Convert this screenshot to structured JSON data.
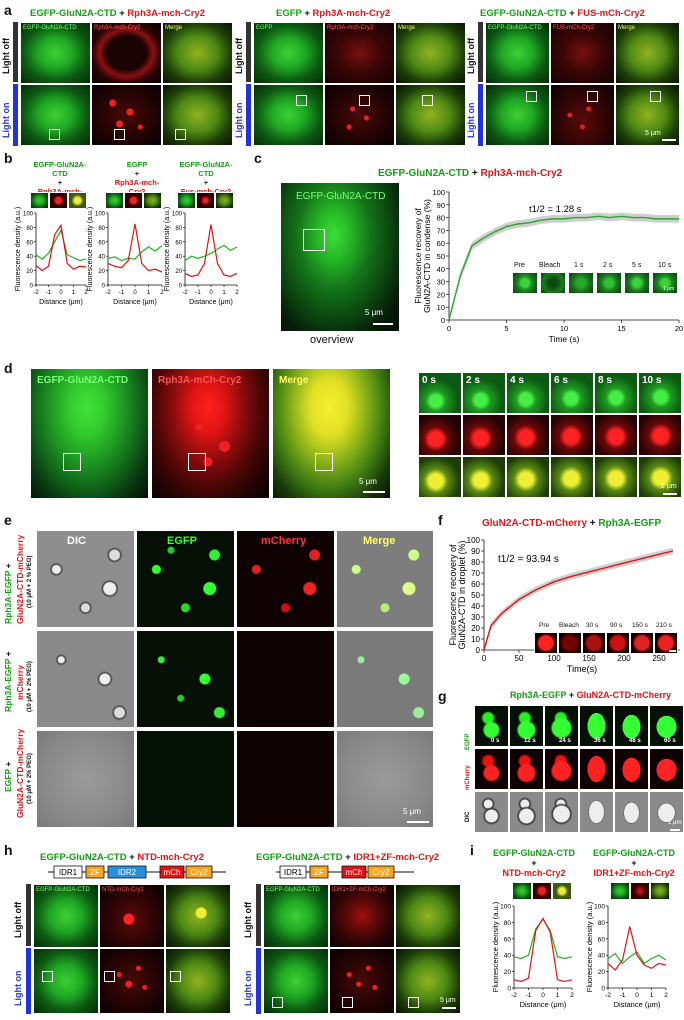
{
  "labels": {
    "a": "a",
    "b": "b",
    "c": "c",
    "d": "d",
    "e": "e",
    "f": "f",
    "g": "g",
    "h": "h",
    "i": "i"
  },
  "plus": "+",
  "a": {
    "g1": {
      "green": "EGFP-GluN2A-CTD",
      "red": "Rph3A-mch-Cry2",
      "caps": [
        "EGFP-GluN2A-CTD",
        "Rph3A-mch-Cry2",
        "Merge"
      ]
    },
    "g2": {
      "green": "EGFP",
      "red": "Rph3A-mch-Cry2",
      "caps": [
        "EGFP",
        "Rph3A-mch-Cry2",
        "Merge"
      ]
    },
    "g3": {
      "green": "EGFP-GluN2A-CTD",
      "red": "FUS-mCh-Cry2",
      "caps": [
        "EGFP-GluN2A-CTD",
        "FUS-mCh-Cry2",
        "Merge"
      ]
    },
    "row_off": "Light off",
    "row_on": "Light on",
    "scale": "5 μm"
  },
  "b": {
    "titles": [
      {
        "line1": "EGFP-GluN2A-CTD",
        "line2": "Rph3A-mch-Cry2"
      },
      {
        "line1": "EGFP",
        "line2": "Rph3A-mch-Cry2"
      },
      {
        "line1": "EGFP-GluN2A-CTD",
        "line2": "Fus-mch-Cry2"
      }
    ],
    "ylabel": "Fluorescence density (a.u.)",
    "xlabel": "Distance (μm)",
    "yticks": [
      "0",
      "20",
      "40",
      "60",
      "80",
      "100"
    ],
    "xticks": [
      "-2",
      "-1",
      "0",
      "1",
      "2"
    ]
  },
  "c": {
    "title_green": "EGFP-GluN2A-CTD",
    "title_red": "Rph3A-mch-Cry2",
    "image_label": "EGFP-GluN2A-CTD",
    "overview": "overview",
    "scale": "5 μm",
    "t_half": "t1/2 = 1.28 s",
    "ylabel1": "Fluorescence recovery of",
    "ylabel2": "GluN2A-CTD in condense (%)",
    "xlabel": "Time (s)",
    "frames": [
      "Pre",
      "Bleach",
      "1 s",
      "2 s",
      "5 s",
      "10 s"
    ],
    "frame_scale": "1 μm"
  },
  "d": {
    "caps": [
      "EGFP-GluN2A-CTD",
      "Rph3A-mCh-Cry2",
      "Merge"
    ],
    "scale": "5 μm",
    "times": [
      "0 s",
      "2 s",
      "4 s",
      "6 s",
      "8 s",
      "10 s"
    ],
    "ts_scale": "2 μm"
  },
  "e": {
    "cols": [
      "DIC",
      "EGFP",
      "mCherry",
      "Merge"
    ],
    "rows": [
      {
        "green": "Rph3A-EGFP",
        "red": "GluN2A-CTD-mCherry",
        "cond": "(10 μM + 2 % PEG)"
      },
      {
        "green": "Rph3A-EGFP",
        "red": "mCherry",
        "cond": "(10 μM + 2% PEG)"
      },
      {
        "green": "EGFP",
        "red": "GluN2A-CTD-mCherry",
        "cond": "(10 μM + 2% PEG)"
      }
    ],
    "scale": "5 μm"
  },
  "f": {
    "title_red": "GluN2A-CTD-mCherry",
    "title_green": "Rph3A-EGFP",
    "t_half": "t1/2 = 93.94 s",
    "ylabel1": "Fluorescence recovery of",
    "ylabel2": "GluN2A-CTD in droplet (%)",
    "xlabel": "Time(s)",
    "frames": [
      "Pre",
      "Bleach",
      "30 s",
      "90 s",
      "150 s",
      "210 s"
    ]
  },
  "g": {
    "title_green": "Rph3A-EGFP",
    "title_red": "GluN2A-CTD-mCherry",
    "rows": [
      "EGFP",
      "mCherry",
      "DIC"
    ],
    "times": [
      "0 s",
      "12 s",
      "24 s",
      "36 s",
      "48 s",
      "60 s"
    ],
    "scale": "2 μm"
  },
  "h": {
    "left": {
      "green": "EGFP-GluN2A-CTD",
      "red": "NTD-mch-Cry2",
      "domains": [
        "IDR1",
        "ZF",
        "IDR2",
        "mCh",
        "Cry2"
      ],
      "caps": [
        "EGFP-GluN2A-CTD",
        "NTD-mCh-Cry2",
        ""
      ]
    },
    "right": {
      "green": "EGFP-GluN2A-CTD",
      "red": "IDR1+ZF-mch-Cry2",
      "domains": [
        "IDR1",
        "ZF",
        "mCh",
        "Cry2"
      ],
      "caps": [
        "EGFP-GluN2A-CTD",
        "IDR1+ZF-mCh-Cry2",
        ""
      ]
    },
    "row_off": "Light off",
    "row_on": "Light on",
    "scale": "5 μm"
  },
  "i": {
    "titles": [
      {
        "line1": "EGFP-GluN2A-CTD",
        "line2": "NTD-mch-Cry2"
      },
      {
        "line1": "EGFP-GluN2A-CTD",
        "line2": "IDR1+ZF-mch-Cry2"
      }
    ],
    "ylabel": "Fluorescence density (a.u.)",
    "xlabel": "Distance (μm)"
  },
  "chart_data": [
    {
      "type": "line",
      "panel": "b1",
      "x": [
        -2,
        -1.5,
        -1,
        -0.5,
        0,
        0.5,
        1,
        1.5,
        2
      ],
      "series": [
        {
          "color": "#1fb41f",
          "values": [
            42,
            36,
            44,
            60,
            76,
            42,
            38,
            34,
            36
          ]
        },
        {
          "color": "#e01414",
          "values": [
            27,
            20,
            26,
            70,
            83,
            30,
            22,
            26,
            25
          ]
        }
      ],
      "ylim": [
        0,
        100
      ],
      "xlim": [
        -2,
        2
      ]
    },
    {
      "type": "line",
      "panel": "b2",
      "x": [
        -2,
        -1.5,
        -1,
        -0.5,
        0,
        0.5,
        1,
        1.5,
        2
      ],
      "series": [
        {
          "color": "#1fb41f",
          "values": [
            37,
            39,
            34,
            37,
            36,
            46,
            53,
            47,
            55
          ]
        },
        {
          "color": "#e01414",
          "values": [
            30,
            26,
            24,
            34,
            85,
            30,
            20,
            22,
            18
          ]
        }
      ],
      "ylim": [
        0,
        100
      ],
      "xlim": [
        -2,
        2
      ]
    },
    {
      "type": "line",
      "panel": "b3",
      "x": [
        -2,
        -1.5,
        -1,
        -0.5,
        0,
        0.5,
        1,
        1.5,
        2
      ],
      "series": [
        {
          "color": "#1fb41f",
          "values": [
            34,
            40,
            37,
            40,
            44,
            50,
            55,
            48,
            53
          ]
        },
        {
          "color": "#e01414",
          "values": [
            16,
            12,
            14,
            30,
            84,
            30,
            14,
            12,
            16
          ]
        }
      ],
      "ylim": [
        0,
        100
      ],
      "xlim": [
        -2,
        2
      ]
    },
    {
      "type": "line",
      "panel": "c",
      "x": [
        0,
        1,
        2,
        3,
        4,
        5,
        6,
        7,
        8,
        9,
        10,
        11,
        12,
        13,
        14,
        15,
        16,
        17,
        18,
        19,
        20
      ],
      "series": [
        {
          "color": "#2aa82a",
          "values": [
            0,
            35,
            58,
            64,
            69,
            73,
            75,
            76,
            78,
            79,
            79,
            80,
            80,
            81,
            80,
            81,
            80,
            80,
            79,
            79,
            79
          ]
        }
      ],
      "xlim": [
        0,
        20
      ],
      "ylim": [
        0,
        100
      ],
      "xticks": [
        0,
        5,
        10,
        15,
        20
      ],
      "yticks": [
        0,
        10,
        20,
        30,
        40,
        50,
        60,
        70,
        80,
        90,
        100
      ]
    },
    {
      "type": "line",
      "panel": "f",
      "x": [
        0,
        10,
        25,
        50,
        75,
        100,
        125,
        150,
        175,
        200,
        225,
        250,
        270
      ],
      "series": [
        {
          "color": "#e01414",
          "values": [
            0,
            22,
            33,
            46,
            55,
            62,
            67,
            71,
            75,
            79,
            83,
            87,
            90
          ]
        }
      ],
      "xlim": [
        0,
        280
      ],
      "ylim": [
        0,
        100
      ],
      "xticks": [
        0,
        50,
        100,
        150,
        200,
        250
      ],
      "yticks": [
        0,
        10,
        20,
        30,
        40,
        50,
        60,
        70,
        80,
        90,
        100
      ]
    },
    {
      "type": "line",
      "panel": "i1",
      "x": [
        -2,
        -1.5,
        -1,
        -0.5,
        0,
        0.5,
        1,
        1.5,
        2
      ],
      "series": [
        {
          "color": "#1fb41f",
          "values": [
            38,
            36,
            40,
            72,
            84,
            70,
            38,
            36,
            38
          ]
        },
        {
          "color": "#e01414",
          "values": [
            10,
            8,
            12,
            70,
            85,
            68,
            10,
            8,
            10
          ]
        }
      ],
      "ylim": [
        0,
        100
      ],
      "xlim": [
        -2,
        2
      ]
    },
    {
      "type": "line",
      "panel": "i2",
      "x": [
        -2,
        -1.5,
        -1,
        -0.5,
        0,
        0.5,
        1,
        1.5,
        2
      ],
      "series": [
        {
          "color": "#1fb41f",
          "values": [
            36,
            42,
            30,
            38,
            44,
            30,
            36,
            40,
            34
          ]
        },
        {
          "color": "#e01414",
          "values": [
            30,
            22,
            34,
            75,
            40,
            28,
            24,
            30,
            28
          ]
        }
      ],
      "ylim": [
        0,
        100
      ],
      "xlim": [
        -2,
        2
      ]
    }
  ]
}
